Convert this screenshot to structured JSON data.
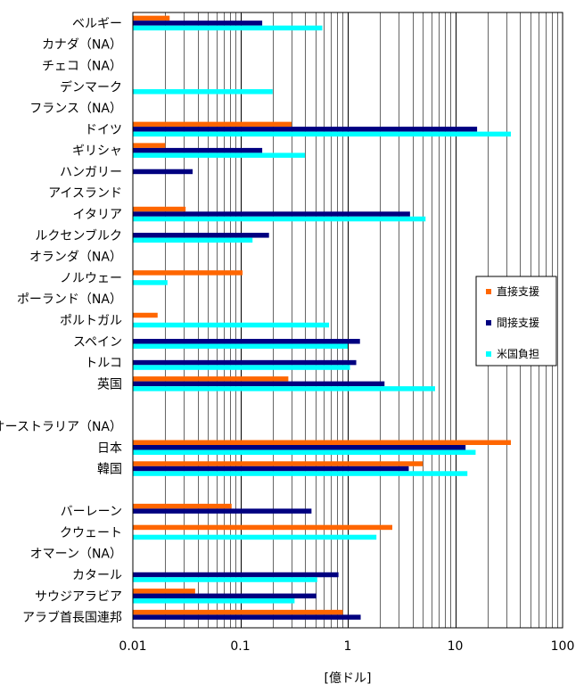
{
  "chart_data": {
    "type": "bar",
    "orientation": "horizontal",
    "xscale": "log",
    "xlim": [
      0.01,
      100
    ],
    "x_ticks": [
      "0.01",
      "0.1",
      "1",
      "10",
      "100"
    ],
    "xlabel": "[億ドル]",
    "grid": "vertical log minor",
    "legend_position": "right",
    "categories": [
      "ベルギー",
      "カナダ（NA）",
      "チェコ（NA）",
      "デンマーク",
      "フランス（NA）",
      "ドイツ",
      "ギリシャ",
      "ハンガリー",
      "アイスランド",
      "イタリア",
      "ルクセンブルク",
      "オランダ（NA）",
      "ノルウェー",
      "ポーランド（NA）",
      "ポルトガル",
      "スペイン",
      "トルコ",
      "英国",
      "",
      "オーストラリア（NA）",
      "日本",
      "韓国",
      "",
      "バーレーン",
      "クウェート",
      "オマーン（NA）",
      "カタール",
      "サウジアラビア",
      "アラブ首長国連邦"
    ],
    "series": [
      {
        "name": "直接支援",
        "color": "#FF6600",
        "values": [
          0.022,
          null,
          null,
          null,
          null,
          0.3,
          0.02,
          null,
          null,
          0.031,
          null,
          null,
          0.105,
          null,
          0.017,
          null,
          null,
          0.28,
          null,
          null,
          33,
          5,
          null,
          0.083,
          2.6,
          null,
          null,
          0.038,
          0.9
        ]
      },
      {
        "name": "間接支援",
        "color": "#000080",
        "values": [
          0.16,
          null,
          null,
          null,
          null,
          16,
          0.16,
          0.036,
          null,
          3.8,
          0.185,
          null,
          null,
          null,
          null,
          1.3,
          1.2,
          2.2,
          null,
          null,
          12.5,
          3.7,
          null,
          0.46,
          null,
          null,
          0.82,
          0.51,
          1.32
        ]
      },
      {
        "name": "米国負担",
        "color": "#00FFFF",
        "values": [
          0.58,
          null,
          null,
          0.2,
          null,
          33,
          0.4,
          null,
          null,
          5.3,
          0.13,
          null,
          0.021,
          null,
          0.67,
          1.0,
          1.05,
          6.5,
          null,
          null,
          15.5,
          13,
          null,
          null,
          1.85,
          null,
          0.52,
          0.32,
          null
        ]
      }
    ]
  }
}
